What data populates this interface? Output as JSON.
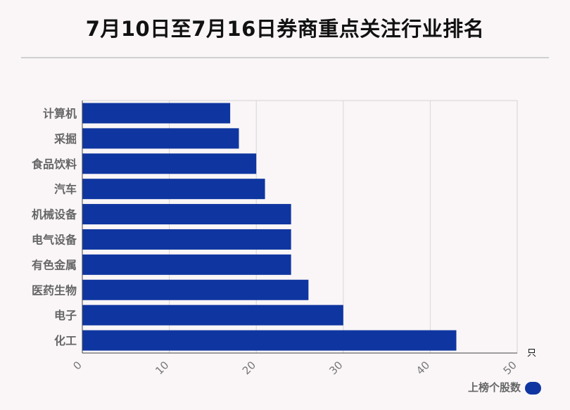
{
  "title": "7月10日至7月16日券商重点关注行业排名",
  "chart_data": {
    "type": "bar",
    "orientation": "horizontal",
    "categories": [
      "计算机",
      "采掘",
      "食品饮料",
      "汽车",
      "机械设备",
      "电气设备",
      "有色金属",
      "医药生物",
      "电子",
      "化工"
    ],
    "series": [
      {
        "name": "上榜个股数",
        "values": [
          17,
          18,
          20,
          21,
          24,
          24,
          24,
          26,
          30,
          43
        ]
      }
    ],
    "xlim": [
      0,
      50
    ],
    "xticks": [
      0,
      10,
      20,
      30,
      40,
      50
    ],
    "unit": "只",
    "grid": true,
    "legend_position": "bottom-right",
    "bar_color": "#0f36a0"
  }
}
